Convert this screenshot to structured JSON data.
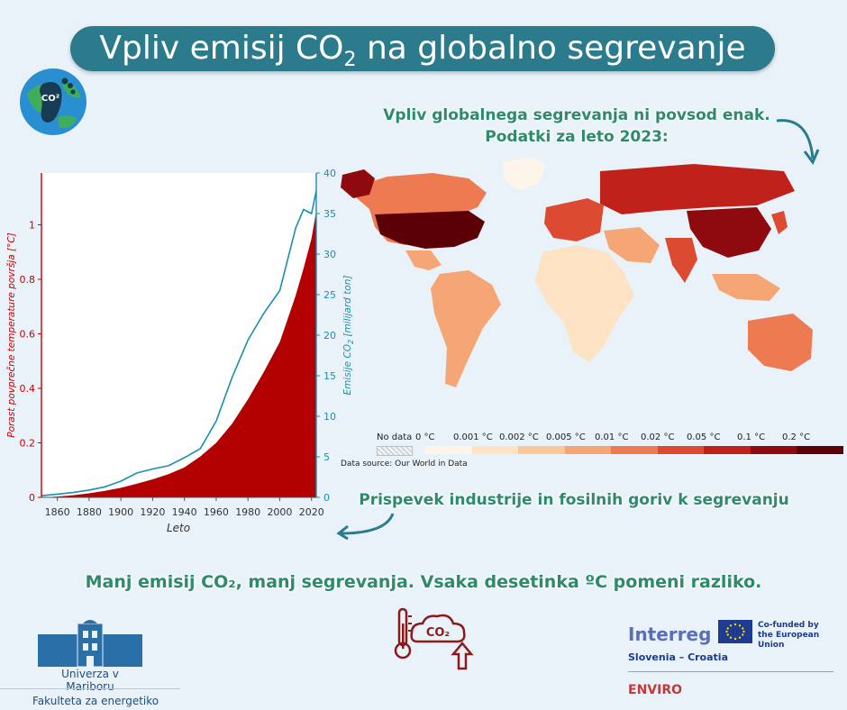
{
  "title": {
    "prefix": "Vpliv emisij CO",
    "sub": "2",
    "suffix": " na globalno segrevanje"
  },
  "map_subtitle": {
    "line1": "Vpliv globalnega segrevanja ni povsod enak.",
    "line2": "Podatki za leto 2023:"
  },
  "chart_subtitle": "Prispevek industrije in fosilnih goriv k segrevanju",
  "bottom_message": "Manj emisij CO₂, manj segrevanja. Vsaka desetinka ºC pomeni razliko.",
  "logo_globe": {
    "text": "CO²"
  },
  "co2_icon": {
    "text": "CO₂"
  },
  "chart_data": {
    "type": "area",
    "title": "",
    "x": [
      1850,
      1860,
      1870,
      1880,
      1890,
      1900,
      1910,
      1920,
      1930,
      1940,
      1950,
      1960,
      1970,
      1980,
      1990,
      2000,
      2010,
      2015,
      2020,
      2023
    ],
    "series": [
      {
        "name": "Porast povprečne temperature površja",
        "axis": "left",
        "values": [
          0.0,
          0.003,
          0.008,
          0.015,
          0.024,
          0.035,
          0.05,
          0.066,
          0.085,
          0.11,
          0.15,
          0.2,
          0.27,
          0.36,
          0.46,
          0.57,
          0.74,
          0.84,
          0.95,
          1.05
        ],
        "color": "#b30000"
      },
      {
        "name": "Emisije CO2",
        "axis": "right",
        "values": [
          0.2,
          0.4,
          0.6,
          0.9,
          1.3,
          2.0,
          3.0,
          3.5,
          3.9,
          4.9,
          6.0,
          9.4,
          14.8,
          19.4,
          22.7,
          25.5,
          33.2,
          35.5,
          35.0,
          37.8
        ],
        "color": "#1a8fb0"
      }
    ],
    "xlabel": "Leto",
    "ylabel_left": "Porast povprečne temperature površja [°C]",
    "ylabel_right_prefix": "Emisije CO",
    "ylabel_right_sub": "2",
    "ylabel_right_suffix": " [milijard ton]",
    "xticks": [
      1860,
      1880,
      1900,
      1920,
      1940,
      1960,
      1980,
      2000,
      2020
    ],
    "yticks_left": [
      0,
      0.2,
      0.4,
      0.6,
      0.8,
      1
    ],
    "yticks_right": [
      0,
      5,
      10,
      15,
      20,
      25,
      30,
      35,
      40
    ],
    "xlim": [
      1850,
      2023
    ],
    "ylim_left": [
      0,
      1.19
    ],
    "ylim_right": [
      0,
      40
    ],
    "left_axis_color": "#cc0000",
    "right_axis_color": "#1a8fb0",
    "grid": false
  },
  "map": {
    "legend": {
      "no_data_label": "No data",
      "categories": [
        "0 °C",
        "0.001 °C",
        "0.002 °C",
        "0.005 °C",
        "0.01 °C",
        "0.02 °C",
        "0.05 °C",
        "0.1 °C",
        "0.2 °C"
      ],
      "colors": [
        "#fdf4ea",
        "#fde2c4",
        "#fbc89a",
        "#f6a574",
        "#ee7a52",
        "#dc4a32",
        "#c0221b",
        "#8f0a0f",
        "#5c0008"
      ]
    },
    "data_source": "Data source: Our World in Data"
  },
  "university": {
    "name": "Univerza v Mariboru",
    "faculty": "Fakulteta za energetiko"
  },
  "interreg": {
    "name": "Interreg",
    "eu_line1": "Co-funded by",
    "eu_line2": "the European Union",
    "program": "Slovenia – Croatia",
    "project": "ENVIRO"
  }
}
